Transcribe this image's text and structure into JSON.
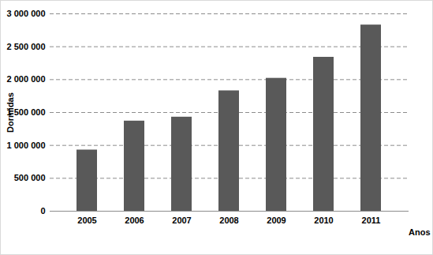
{
  "chart_data": {
    "type": "bar",
    "categories": [
      "2005",
      "2006",
      "2007",
      "2008",
      "2009",
      "2010",
      "2011"
    ],
    "values": [
      930000,
      1370000,
      1430000,
      1830000,
      2020000,
      2340000,
      2830000
    ],
    "color": "#595959",
    "x_label": "Anos",
    "y_label": "Dormidas",
    "ylim": [
      0,
      3000000
    ],
    "yticks": [
      0,
      {
        "value": 500000,
        "label": "500 000"
      },
      {
        "value": 1000000,
        "label": "1 000 000"
      },
      {
        "value": 1500000,
        "label": "1 500 000"
      },
      {
        "value": 2000000,
        "label": "2 000 000"
      },
      {
        "value": 2500000,
        "label": "2 500 000"
      },
      {
        "value": 3000000,
        "label": "3 000 000"
      }
    ],
    "grid": true
  }
}
